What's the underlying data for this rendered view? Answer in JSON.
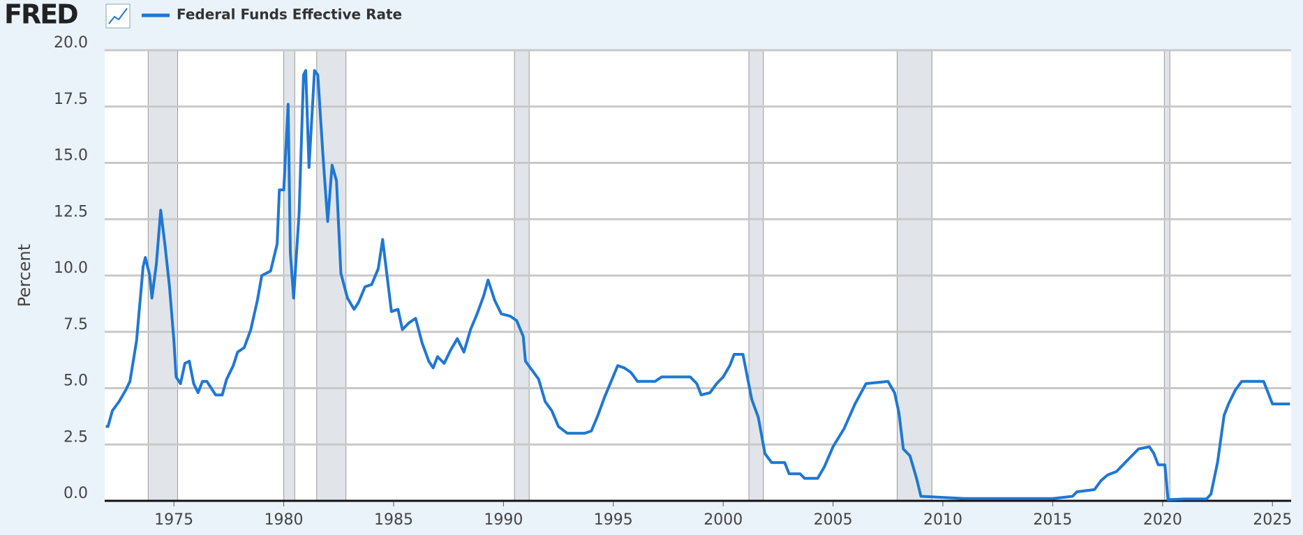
{
  "logo": "FRED",
  "chart_data": {
    "type": "line",
    "ylabel": "Percent",
    "xlim": [
      1971.85,
      2025.85
    ],
    "ylim": [
      0,
      20
    ],
    "xticks": [
      1975,
      1980,
      1985,
      1990,
      1995,
      2000,
      2005,
      2010,
      2015,
      2020,
      2025
    ],
    "yticks": [
      {
        "value": 0,
        "label": "0.0"
      },
      {
        "value": 2.5,
        "label": "2.5"
      },
      {
        "value": 5,
        "label": "5.0"
      },
      {
        "value": 7.5,
        "label": "7.5"
      },
      {
        "value": 10,
        "label": "10.0"
      },
      {
        "value": 12.5,
        "label": "12.5"
      },
      {
        "value": 15,
        "label": "15.0"
      },
      {
        "value": 17.5,
        "label": "17.5"
      },
      {
        "value": 20,
        "label": "20.0"
      }
    ],
    "grid": true,
    "recessions": [
      [
        1973.83,
        1975.17
      ],
      [
        1980.0,
        1980.5
      ],
      [
        1981.5,
        1982.83
      ],
      [
        1990.5,
        1991.17
      ],
      [
        2001.17,
        2001.83
      ],
      [
        2007.92,
        2009.5
      ],
      [
        2020.08,
        2020.33
      ]
    ],
    "x": [
      1971.9,
      1972.0,
      1972.2,
      1972.5,
      1972.8,
      1973.0,
      1973.3,
      1973.6,
      1973.7,
      1973.9,
      1974.0,
      1974.2,
      1974.4,
      1974.6,
      1974.8,
      1975.0,
      1975.1,
      1975.3,
      1975.5,
      1975.7,
      1975.9,
      1976.1,
      1976.3,
      1976.5,
      1976.7,
      1976.9,
      1977.2,
      1977.4,
      1977.7,
      1977.9,
      1978.2,
      1978.5,
      1978.8,
      1979.0,
      1979.4,
      1979.7,
      1979.8,
      1980.0,
      1980.2,
      1980.3,
      1980.45,
      1980.7,
      1980.9,
      1981.0,
      1981.15,
      1981.4,
      1981.55,
      1981.8,
      1982.0,
      1982.2,
      1982.4,
      1982.6,
      1982.9,
      1983.2,
      1983.4,
      1983.7,
      1984.0,
      1984.3,
      1984.5,
      1984.7,
      1984.9,
      1985.2,
      1985.4,
      1985.7,
      1986.0,
      1986.3,
      1986.6,
      1986.8,
      1987.0,
      1987.3,
      1987.6,
      1987.9,
      1988.2,
      1988.5,
      1988.8,
      1989.1,
      1989.3,
      1989.6,
      1989.9,
      1990.3,
      1990.6,
      1990.9,
      1991.0,
      1991.3,
      1991.6,
      1991.9,
      1992.2,
      1992.5,
      1992.9,
      1993.3,
      1993.7,
      1994.0,
      1994.3,
      1994.6,
      1994.9,
      1995.2,
      1995.5,
      1995.8,
      1996.1,
      1996.5,
      1996.9,
      1997.2,
      1997.6,
      1998.0,
      1998.5,
      1998.8,
      1999.0,
      1999.4,
      1999.7,
      2000.0,
      2000.3,
      2000.5,
      2000.9,
      2001.1,
      2001.3,
      2001.6,
      2001.9,
      2002.2,
      2002.8,
      2003.0,
      2003.5,
      2003.7,
      2004.3,
      2004.6,
      2005.0,
      2005.5,
      2006.0,
      2006.5,
      2007.5,
      2007.8,
      2008.0,
      2008.2,
      2008.5,
      2008.8,
      2009.0,
      2010.0,
      2011.0,
      2012.0,
      2013.0,
      2014.0,
      2015.0,
      2015.9,
      2016.1,
      2016.9,
      2017.2,
      2017.5,
      2017.9,
      2018.2,
      2018.5,
      2018.9,
      2019.4,
      2019.6,
      2019.8,
      2020.1,
      2020.25,
      2021.0,
      2022.0,
      2022.2,
      2022.5,
      2022.8,
      2023.0,
      2023.3,
      2023.6,
      2024.6,
      2024.8,
      2025.0,
      2025.8
    ],
    "series": [
      {
        "name": "Federal Funds Effective Rate",
        "color": "#1f77d4",
        "values": [
          3.3,
          3.3,
          4.0,
          4.4,
          4.9,
          5.3,
          7.1,
          10.4,
          10.8,
          10.0,
          9.0,
          10.5,
          12.9,
          11.3,
          9.5,
          7.1,
          5.5,
          5.2,
          6.1,
          6.2,
          5.2,
          4.8,
          5.3,
          5.3,
          5.0,
          4.7,
          4.7,
          5.4,
          6.0,
          6.6,
          6.8,
          7.6,
          8.9,
          10.0,
          10.2,
          11.4,
          13.8,
          13.8,
          17.6,
          11.0,
          9.0,
          12.8,
          18.9,
          19.1,
          14.8,
          19.1,
          18.9,
          15.1,
          12.4,
          14.9,
          14.2,
          10.1,
          9.0,
          8.5,
          8.8,
          9.5,
          9.6,
          10.3,
          11.6,
          10.0,
          8.4,
          8.5,
          7.6,
          7.9,
          8.1,
          7.0,
          6.2,
          5.9,
          6.4,
          6.1,
          6.7,
          7.2,
          6.6,
          7.6,
          8.3,
          9.1,
          9.8,
          8.9,
          8.3,
          8.2,
          8.0,
          7.3,
          6.2,
          5.8,
          5.4,
          4.4,
          4.0,
          3.3,
          3.0,
          3.0,
          3.0,
          3.1,
          3.8,
          4.6,
          5.3,
          6.0,
          5.9,
          5.7,
          5.3,
          5.3,
          5.3,
          5.5,
          5.5,
          5.5,
          5.5,
          5.2,
          4.7,
          4.8,
          5.2,
          5.5,
          6.0,
          6.5,
          6.5,
          5.5,
          4.5,
          3.7,
          2.1,
          1.7,
          1.7,
          1.2,
          1.2,
          1.0,
          1.0,
          1.5,
          2.4,
          3.2,
          4.3,
          5.2,
          5.3,
          4.8,
          3.9,
          2.3,
          2.0,
          1.0,
          0.2,
          0.15,
          0.1,
          0.1,
          0.1,
          0.1,
          0.1,
          0.2,
          0.4,
          0.5,
          0.9,
          1.15,
          1.3,
          1.6,
          1.9,
          2.3,
          2.4,
          2.1,
          1.6,
          1.6,
          0.05,
          0.08,
          0.08,
          0.3,
          1.7,
          3.8,
          4.3,
          4.9,
          5.3,
          5.3,
          4.8,
          4.3,
          4.3
        ]
      }
    ]
  }
}
